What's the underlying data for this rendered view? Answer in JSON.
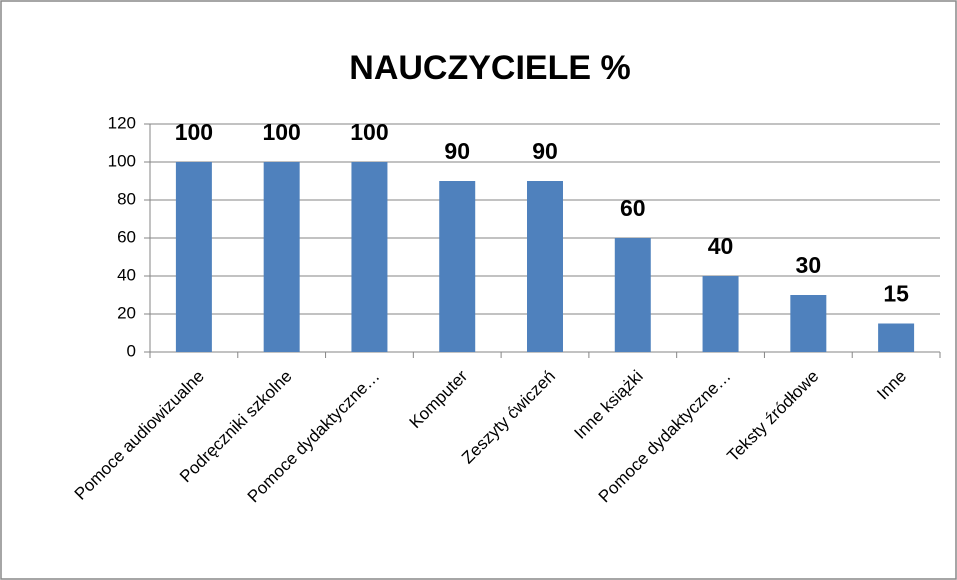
{
  "chart_data": {
    "type": "bar",
    "title": "NAUCZYCIELE %",
    "categories": [
      "Pomoce audiowizualne",
      "Podręczniki szkolne",
      "Pomoce dydaktyczne…",
      "Komputer",
      "Zeszyty ćwiczeń",
      "Inne książki",
      "Pomoce dydaktyczne…",
      "Teksty źródłowe",
      "Inne"
    ],
    "values": [
      100,
      100,
      100,
      90,
      90,
      60,
      40,
      30,
      15
    ],
    "color": "#4f81bd",
    "ylim": [
      0,
      120
    ],
    "yticks": [
      0,
      20,
      40,
      60,
      80,
      100,
      120
    ],
    "grid": true,
    "data_labels": true
  }
}
